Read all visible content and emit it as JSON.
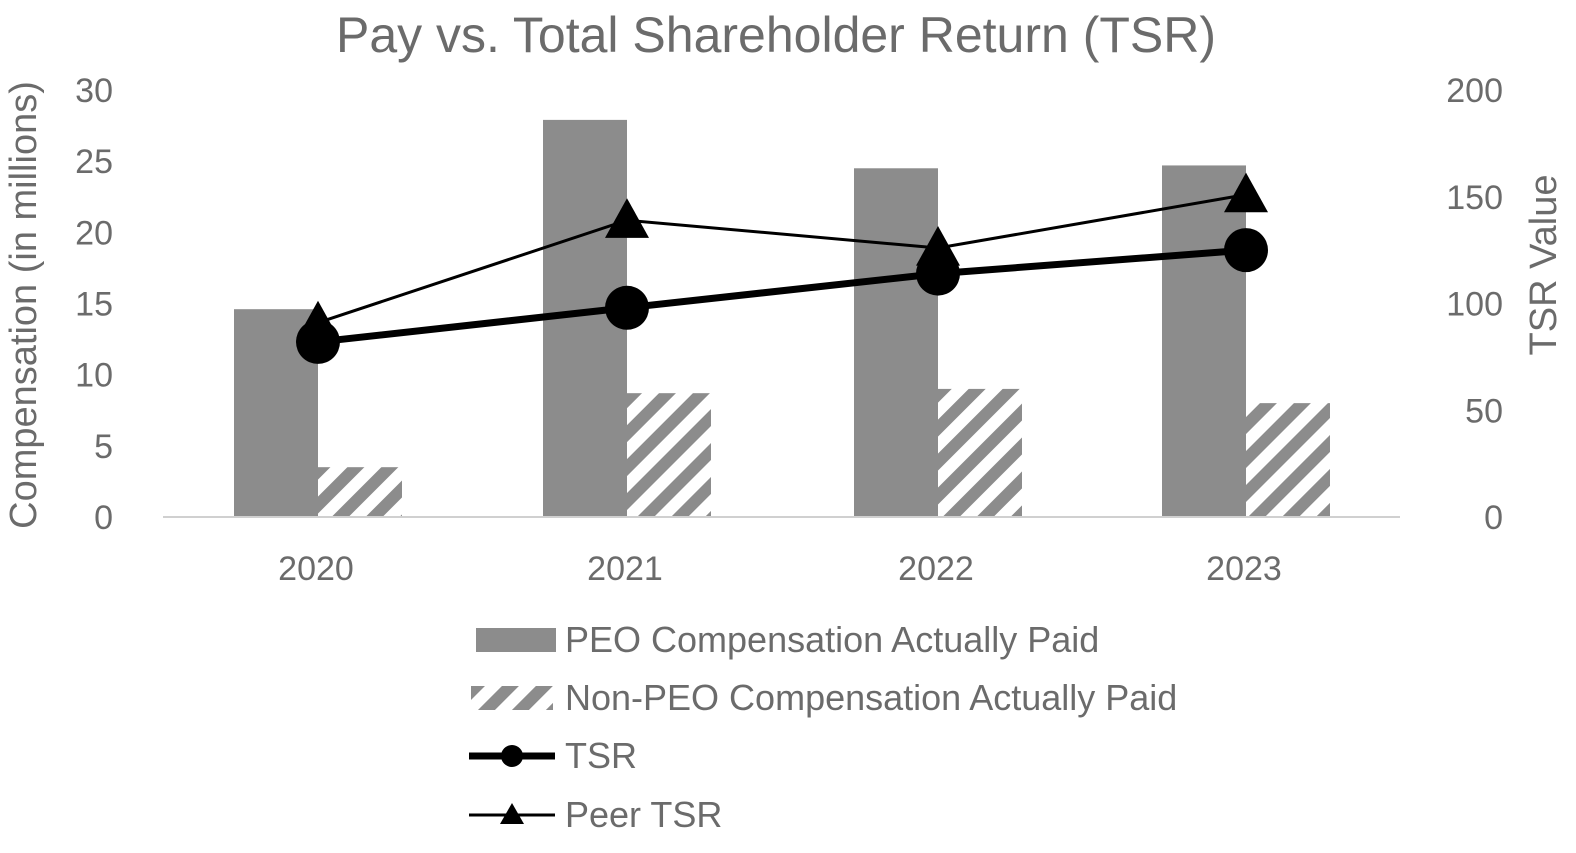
{
  "chart_data": {
    "type": "bar",
    "title": "Pay vs. Total Shareholder Return (TSR)",
    "categories": [
      "2020",
      "2021",
      "2022",
      "2023"
    ],
    "y_left": {
      "label": "Compensation (in millions)",
      "range": [
        0,
        30
      ],
      "ticks": [
        0,
        5,
        10,
        15,
        20,
        25,
        30
      ]
    },
    "y_right": {
      "label": "TSR Value",
      "range": [
        0,
        200
      ],
      "ticks": [
        0,
        50,
        100,
        150,
        200
      ]
    },
    "series": [
      {
        "name": "PEO Compensation Actually Paid",
        "type": "bar",
        "axis": "left",
        "style": "solid",
        "color": "#8c8c8c",
        "values": [
          14.6,
          27.9,
          24.5,
          24.7
        ]
      },
      {
        "name": "Non-PEO Compensation Actually Paid",
        "type": "bar",
        "axis": "left",
        "style": "hatched",
        "color": "#8c8c8c",
        "values": [
          3.5,
          8.7,
          9.0,
          8.0
        ]
      },
      {
        "name": "TSR",
        "type": "line",
        "axis": "right",
        "marker": "circle",
        "color": "#000000",
        "values": [
          82,
          98,
          114,
          125
        ]
      },
      {
        "name": "Peer TSR",
        "type": "line",
        "axis": "right",
        "marker": "triangle",
        "color": "#000000",
        "values": [
          91,
          139,
          126,
          151
        ]
      }
    ],
    "grid": false,
    "legend_position": "bottom"
  }
}
